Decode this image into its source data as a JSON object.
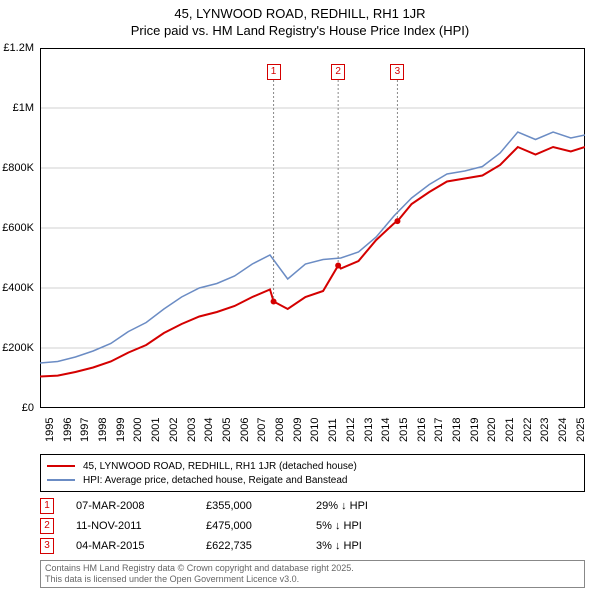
{
  "title": {
    "line1": "45, LYNWOOD ROAD, REDHILL, RH1 1JR",
    "line2": "Price paid vs. HM Land Registry's House Price Index (HPI)"
  },
  "chart": {
    "type": "line",
    "background_color": "#ffffff",
    "grid_color": "#d0d0d0",
    "border_color": "#000000",
    "ylim": [
      0,
      1200000
    ],
    "ytick_step": 200000,
    "ytick_labels": [
      "£0",
      "£200K",
      "£400K",
      "£600K",
      "£800K",
      "£1M",
      "£1.2M"
    ],
    "xlim": [
      1995,
      2025.8
    ],
    "xtick_step": 1,
    "xtick_labels": [
      "1995",
      "1996",
      "1997",
      "1998",
      "1999",
      "2000",
      "2001",
      "2002",
      "2003",
      "2004",
      "2005",
      "2006",
      "2007",
      "2008",
      "2009",
      "2010",
      "2011",
      "2012",
      "2013",
      "2014",
      "2015",
      "2016",
      "2017",
      "2018",
      "2019",
      "2020",
      "2021",
      "2022",
      "2023",
      "2024",
      "2025"
    ],
    "label_fontsize": 11,
    "series": [
      {
        "name": "property",
        "color": "#d40000",
        "line_width": 2,
        "x": [
          1995,
          1996,
          1997,
          1998,
          1999,
          2000,
          2001,
          2002,
          2003,
          2004,
          2005,
          2006,
          2007,
          2008,
          2008.2,
          2009,
          2010,
          2011,
          2011.85,
          2012,
          2013,
          2014,
          2015,
          2015.2,
          2016,
          2017,
          2018,
          2019,
          2020,
          2021,
          2022,
          2023,
          2024,
          2025,
          2025.8
        ],
        "y": [
          105000,
          108000,
          120000,
          135000,
          155000,
          185000,
          210000,
          250000,
          280000,
          305000,
          320000,
          340000,
          370000,
          395000,
          355000,
          330000,
          370000,
          390000,
          475000,
          465000,
          490000,
          560000,
          615000,
          622735,
          680000,
          720000,
          755000,
          765000,
          775000,
          810000,
          870000,
          845000,
          870000,
          855000,
          870000
        ]
      },
      {
        "name": "hpi",
        "color": "#6b8cc4",
        "line_width": 1.5,
        "x": [
          1995,
          1996,
          1997,
          1998,
          1999,
          2000,
          2001,
          2002,
          2003,
          2004,
          2005,
          2006,
          2007,
          2008,
          2009,
          2010,
          2011,
          2012,
          2013,
          2014,
          2015,
          2016,
          2017,
          2018,
          2019,
          2020,
          2021,
          2022,
          2023,
          2024,
          2025,
          2025.8
        ],
        "y": [
          150000,
          155000,
          170000,
          190000,
          215000,
          255000,
          285000,
          330000,
          370000,
          400000,
          415000,
          440000,
          480000,
          510000,
          430000,
          480000,
          495000,
          500000,
          520000,
          570000,
          640000,
          700000,
          745000,
          780000,
          790000,
          805000,
          850000,
          920000,
          895000,
          920000,
          900000,
          910000
        ]
      }
    ],
    "sale_markers": [
      {
        "n": "1",
        "x": 2008.2,
        "y": 355000
      },
      {
        "n": "2",
        "x": 2011.85,
        "y": 475000
      },
      {
        "n": "3",
        "x": 2015.2,
        "y": 622735
      }
    ],
    "marker_point_color": "#d40000",
    "marker_point_radius": 3,
    "marker_box_border": "#d40000",
    "marker_box_text_color": "#d40000",
    "marker_connector_color": "#888888",
    "marker_connector_dash": "2,2"
  },
  "legend": {
    "items": [
      {
        "color": "#d40000",
        "width": 2,
        "label": "45, LYNWOOD ROAD, REDHILL, RH1 1JR (detached house)"
      },
      {
        "color": "#6b8cc4",
        "width": 1.5,
        "label": "HPI: Average price, detached house, Reigate and Banstead"
      }
    ]
  },
  "annotations": [
    {
      "n": "1",
      "date": "07-MAR-2008",
      "price": "£355,000",
      "diff": "29% ↓ HPI"
    },
    {
      "n": "2",
      "date": "11-NOV-2011",
      "price": "£475,000",
      "diff": "5% ↓ HPI"
    },
    {
      "n": "3",
      "date": "04-MAR-2015",
      "price": "£622,735",
      "diff": "3% ↓ HPI"
    }
  ],
  "footer": {
    "line1": "Contains HM Land Registry data © Crown copyright and database right 2025.",
    "line2": "This data is licensed under the Open Government Licence v3.0."
  }
}
